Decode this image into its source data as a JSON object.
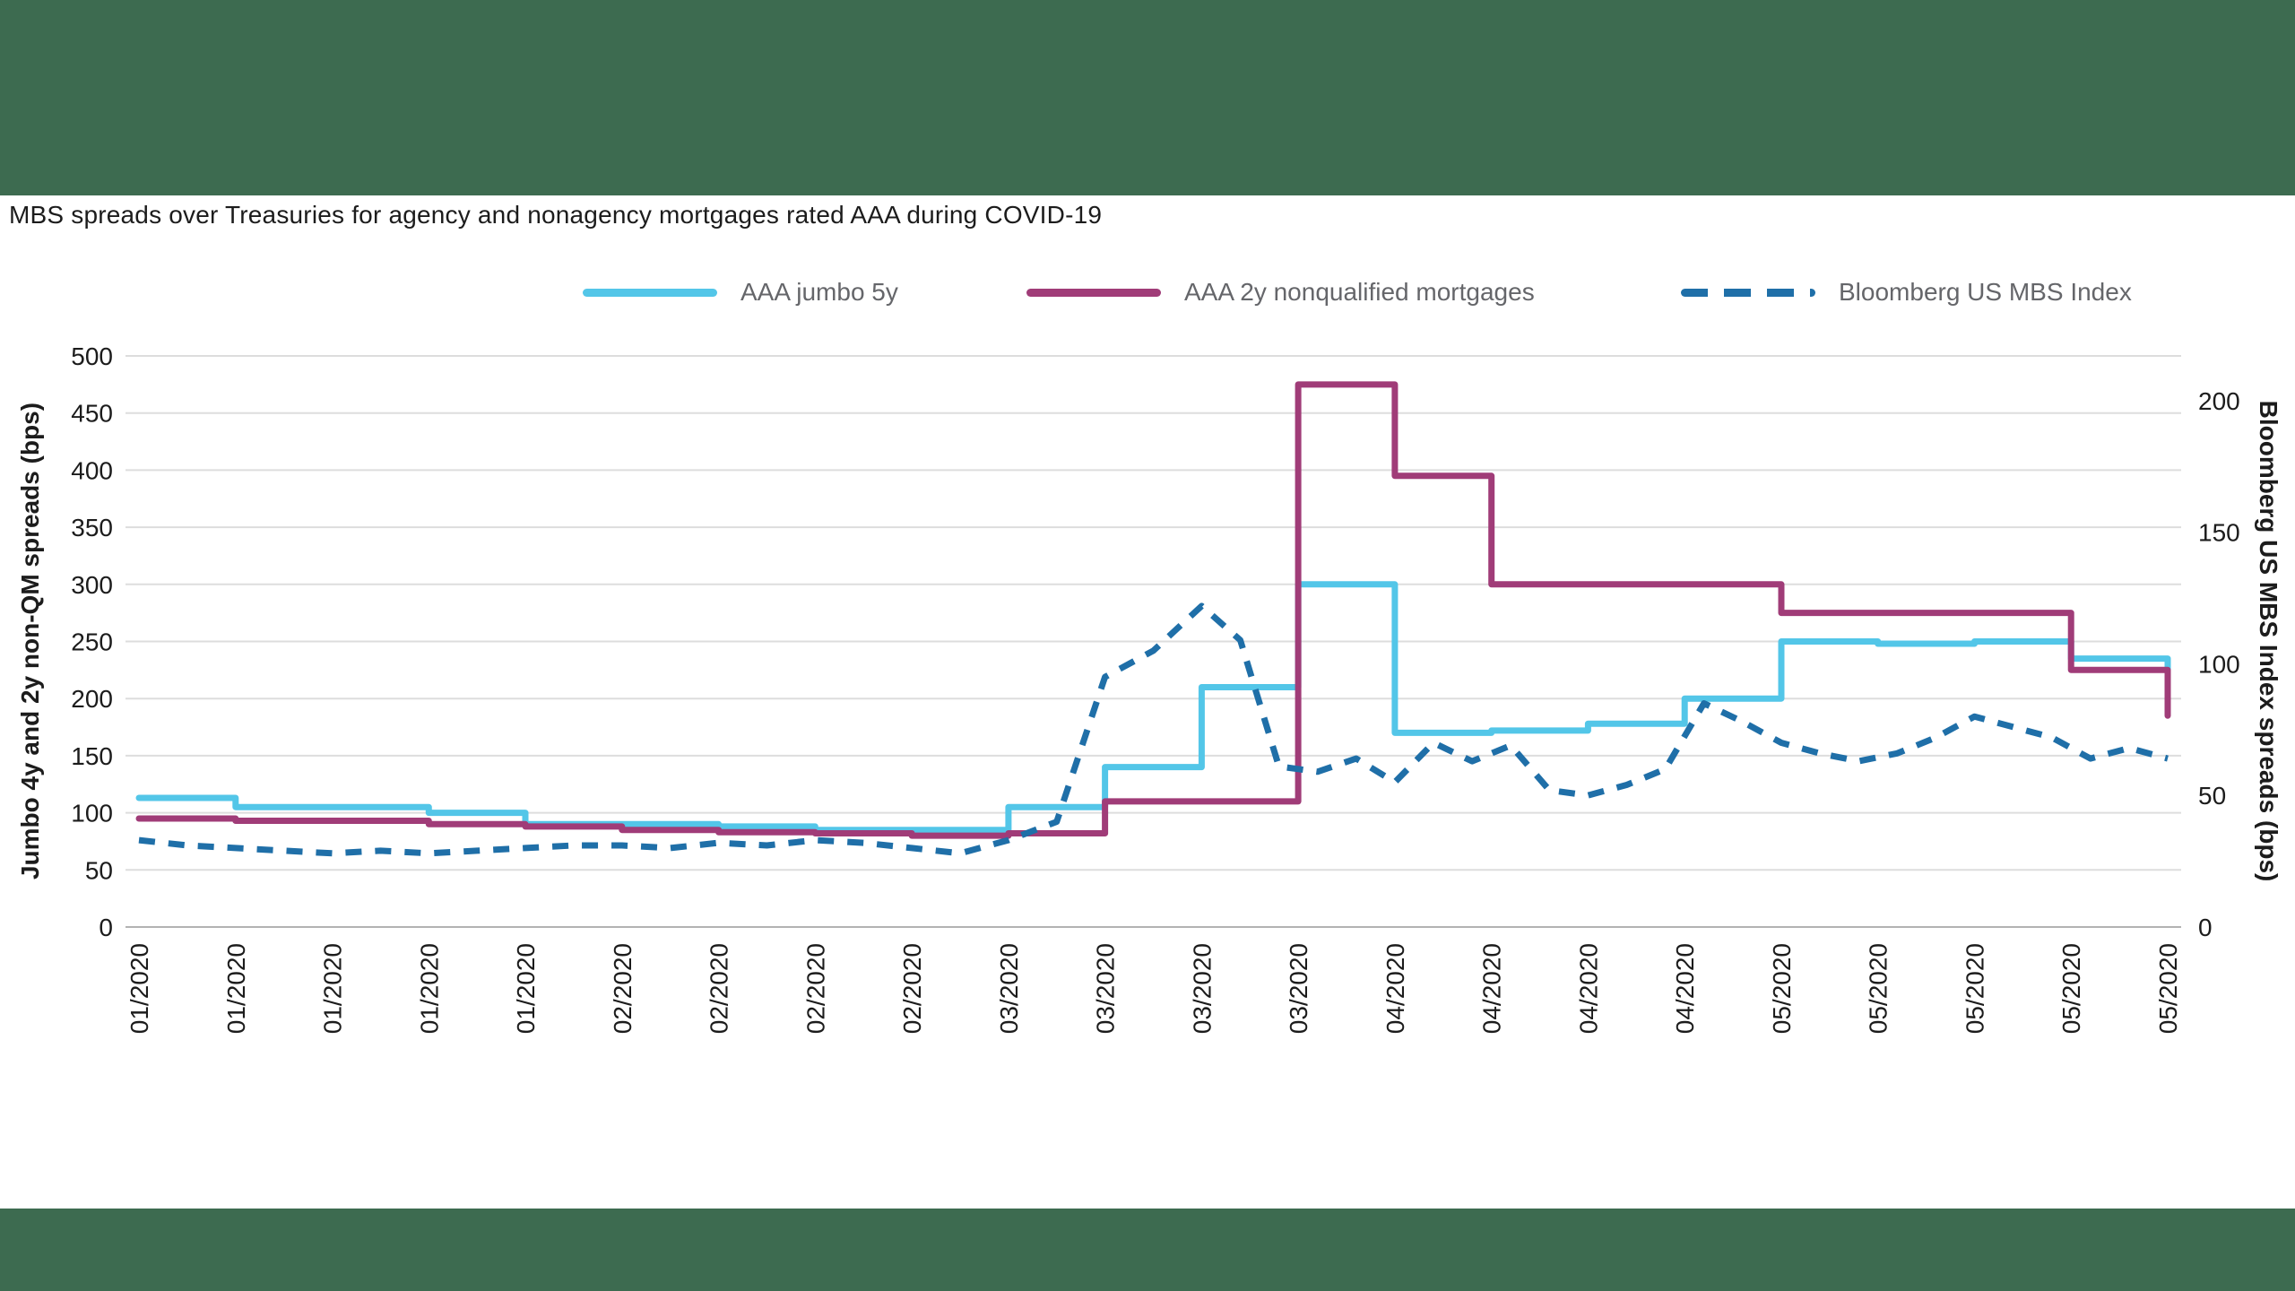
{
  "page": {
    "background_color": "#3d6b50",
    "panel_color": "#ffffff",
    "text_color": "#1c1c1c",
    "gridline_color": "#dddddd",
    "baseline_color": "#b3b3b3"
  },
  "title": "MBS spreads over Treasuries for agency and nonagency mortgages rated AAA during COVID-19",
  "legend": [
    {
      "label": "AAA jumbo 5y",
      "color": "#53c6e8",
      "style": "solid"
    },
    {
      "label": "AAA 2y nonqualified mortgages",
      "color": "#a03c78",
      "style": "solid"
    },
    {
      "label": "Bloomberg US MBS Index",
      "color": "#1f6fa8",
      "style": "dashed"
    }
  ],
  "chart_data": {
    "type": "line",
    "title": "MBS spreads over Treasuries for agency and nonagency mortgages rated AAA during COVID-19",
    "grid": "horizontal",
    "legend_position": "top",
    "x_tick_labels": [
      "01/2020",
      "01/2020",
      "01/2020",
      "01/2020",
      "01/2020",
      "02/2020",
      "02/2020",
      "02/2020",
      "02/2020",
      "03/2020",
      "03/2020",
      "03/2020",
      "03/2020",
      "04/2020",
      "04/2020",
      "04/2020",
      "04/2020",
      "05/2020",
      "05/2020",
      "05/2020",
      "05/2020",
      "05/2020"
    ],
    "left_axis": {
      "label": "Jumbo 4y and 2y non-QM spreads (bps)",
      "min": 0,
      "max": 500,
      "tick_step": 50,
      "ticks": [
        0,
        50,
        100,
        150,
        200,
        250,
        300,
        350,
        400,
        450,
        500
      ]
    },
    "right_axis": {
      "label": "Bloomberg US MBS Index spreads (bps)",
      "min": 0,
      "max": 217,
      "ticks": [
        0,
        50,
        100,
        150,
        200
      ]
    },
    "series": [
      {
        "name": "AAA jumbo 5y",
        "axis": "left",
        "color": "#53c6e8",
        "line_style": "solid",
        "interpolation": "step-after",
        "values": [
          113,
          105,
          105,
          100,
          90,
          90,
          88,
          85,
          85,
          105,
          140,
          210,
          300,
          170,
          172,
          178,
          200,
          250,
          248,
          250,
          235,
          215
        ]
      },
      {
        "name": "AAA 2y nonqualified mortgages",
        "axis": "left",
        "color": "#a03c78",
        "line_style": "solid",
        "interpolation": "step-after",
        "values": [
          95,
          93,
          93,
          90,
          88,
          85,
          83,
          82,
          80,
          82,
          110,
          110,
          475,
          395,
          300,
          300,
          300,
          275,
          275,
          275,
          225,
          185
        ]
      },
      {
        "name": "Bloomberg US MBS Index",
        "axis": "right",
        "color": "#1f6fa8",
        "line_style": "dashed",
        "interpolation": "linear",
        "x": [
          0,
          0.5,
          1,
          1.5,
          2,
          2.5,
          3,
          3.5,
          4,
          4.5,
          5,
          5.5,
          6,
          6.5,
          7,
          7.5,
          8,
          8.5,
          9,
          9.5,
          10,
          10.5,
          11,
          11.4,
          11.8,
          12.2,
          12.6,
          13,
          13.4,
          13.8,
          14.2,
          14.6,
          15,
          15.4,
          15.8,
          16.2,
          16.6,
          17,
          17.4,
          17.8,
          18.2,
          18.6,
          19,
          19.4,
          19.8,
          20.2,
          20.6,
          21
        ],
        "values": [
          33,
          31,
          30,
          29,
          28,
          29,
          28,
          29,
          30,
          31,
          31,
          30,
          32,
          31,
          33,
          32,
          30,
          28,
          33,
          40,
          95,
          105,
          122,
          109,
          61,
          59,
          64,
          55,
          70,
          63,
          69,
          52,
          50,
          54,
          60,
          85,
          78,
          70,
          66,
          63,
          66,
          72,
          80,
          76,
          72,
          64,
          68,
          64
        ]
      }
    ]
  }
}
